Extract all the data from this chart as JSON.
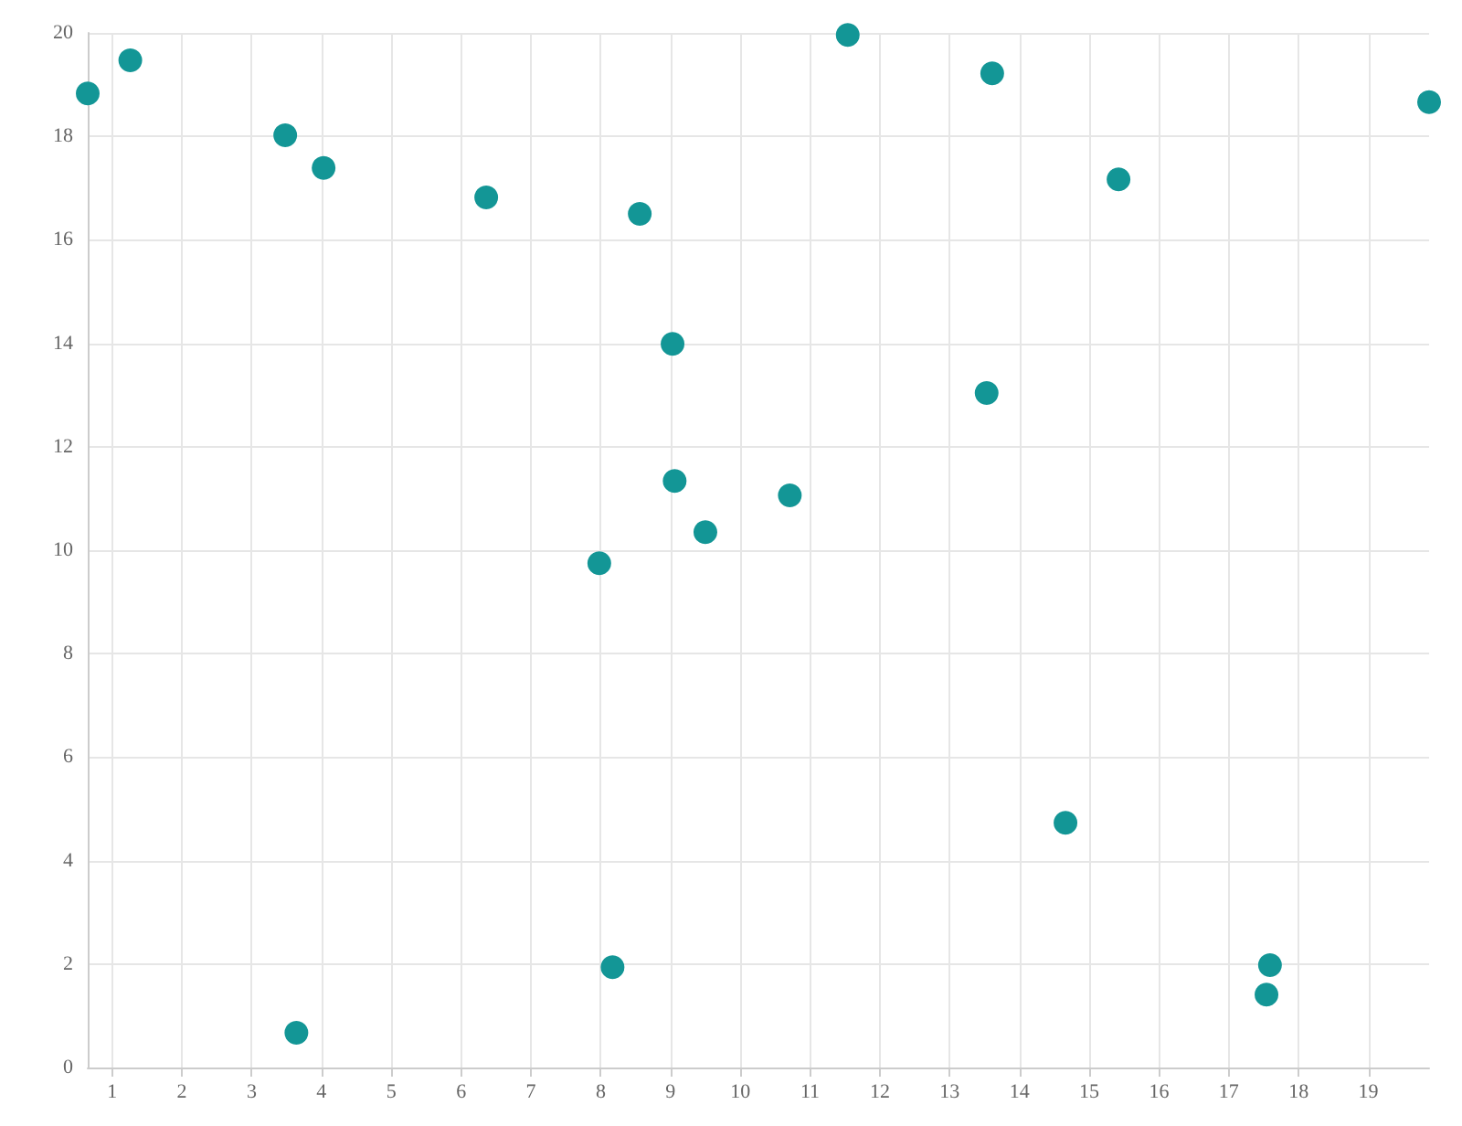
{
  "chart_data": {
    "type": "scatter",
    "color": "#139696",
    "marker": "circle",
    "grid": true,
    "x": [
      0.65,
      1.26,
      3.48,
      3.64,
      4.03,
      6.36,
      7.98,
      8.17,
      8.56,
      9.03,
      9.06,
      9.5,
      10.71,
      11.54,
      13.53,
      13.61,
      14.66,
      15.42,
      17.54,
      17.59,
      19.87
    ],
    "values": [
      18.83,
      19.47,
      18.02,
      0.67,
      17.39,
      16.82,
      9.75,
      1.94,
      16.5,
      13.99,
      11.34,
      10.35,
      11.06,
      19.96,
      13.04,
      19.22,
      4.73,
      17.17,
      1.41,
      1.98,
      18.66
    ],
    "xlim": [
      0.65,
      19.87
    ],
    "xticks": [
      1,
      2,
      3,
      4,
      5,
      6,
      7,
      8,
      9,
      10,
      11,
      12,
      13,
      14,
      15,
      16,
      17,
      18,
      19
    ],
    "ylim": [
      0,
      20
    ],
    "yticks": [
      0,
      2,
      4,
      6,
      8,
      10,
      12,
      14,
      16,
      18,
      20
    ]
  }
}
